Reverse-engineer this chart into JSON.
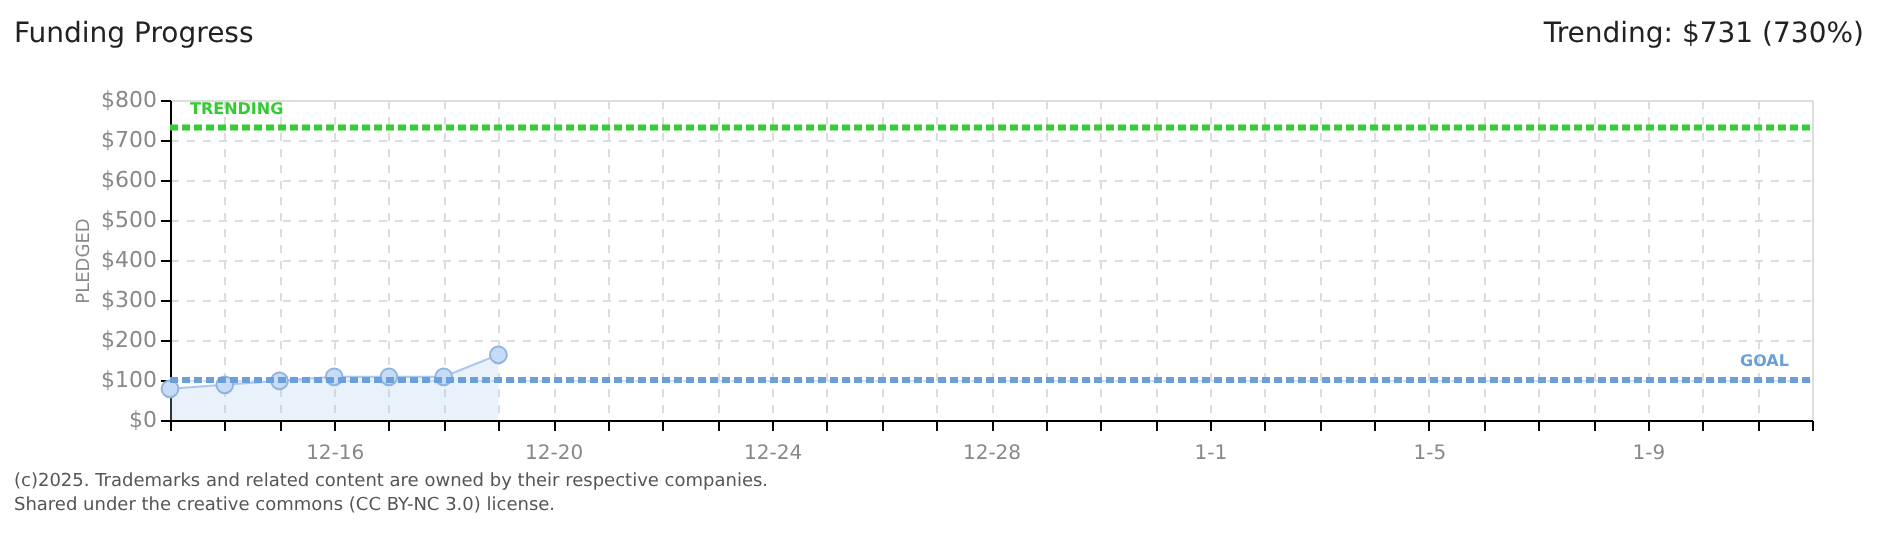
{
  "chart_data": {
    "type": "area",
    "title": "Funding Progress",
    "ylabel": "PLEDGED",
    "annotations": [
      "Trending: $731 (730%)",
      "(c)2025. Trademarks and related content are owned by their respective companies.",
      "Shared under the creative commons (CC BY-NC 3.0) license."
    ],
    "x": [
      "2024-12-13",
      "2024-12-14",
      "2024-12-15",
      "2024-12-16",
      "2024-12-17",
      "2024-12-18",
      "2024-12-19"
    ],
    "series": [
      {
        "color": "#a9c8f0",
        "values": [
          78,
          88,
          98,
          108,
          108,
          108,
          163
        ]
      }
    ],
    "marker": "circle",
    "grid": true,
    "xlim": [
      "2024-12-13",
      "2025-01-12"
    ],
    "xticks": [
      {
        "value": "2024-12-13",
        "label": null
      },
      {
        "value": "2024-12-14",
        "label": null
      },
      {
        "value": "2024-12-15",
        "label": null
      },
      {
        "value": "2024-12-16",
        "label": "12-16"
      },
      {
        "value": "2024-12-17",
        "label": null
      },
      {
        "value": "2024-12-18",
        "label": null
      },
      {
        "value": "2024-12-19",
        "label": null
      },
      {
        "value": "2024-12-20",
        "label": "12-20"
      },
      {
        "value": "2024-12-21",
        "label": null
      },
      {
        "value": "2024-12-22",
        "label": null
      },
      {
        "value": "2024-12-23",
        "label": null
      },
      {
        "value": "2024-12-24",
        "label": "12-24"
      },
      {
        "value": "2024-12-25",
        "label": null
      },
      {
        "value": "2024-12-26",
        "label": null
      },
      {
        "value": "2024-12-27",
        "label": null
      },
      {
        "value": "2024-12-28",
        "label": "12-28"
      },
      {
        "value": "2024-12-29",
        "label": null
      },
      {
        "value": "2024-12-30",
        "label": null
      },
      {
        "value": "2024-12-31",
        "label": null
      },
      {
        "value": "2025-01-01",
        "label": "1-1"
      },
      {
        "value": "2025-01-02",
        "label": null
      },
      {
        "value": "2025-01-03",
        "label": null
      },
      {
        "value": "2025-01-04",
        "label": null
      },
      {
        "value": "2025-01-05",
        "label": "1-5"
      },
      {
        "value": "2025-01-06",
        "label": null
      },
      {
        "value": "2025-01-07",
        "label": null
      },
      {
        "value": "2025-01-08",
        "label": null
      },
      {
        "value": "2025-01-09",
        "label": "1-9"
      },
      {
        "value": "2025-01-10",
        "label": null
      },
      {
        "value": "2025-01-11",
        "label": null
      },
      {
        "value": "2025-01-12",
        "label": null
      }
    ],
    "ylim": [
      0,
      800
    ],
    "yticks": [
      {
        "value": 0,
        "label": "$0"
      },
      {
        "value": 100,
        "label": "$100"
      },
      {
        "value": 200,
        "label": "$200"
      },
      {
        "value": 300,
        "label": "$300"
      },
      {
        "value": 400,
        "label": "$400"
      },
      {
        "value": 500,
        "label": "$500"
      },
      {
        "value": 600,
        "label": "$600"
      },
      {
        "value": 700,
        "label": "$700"
      },
      {
        "value": 800,
        "label": "$800"
      }
    ],
    "ref_lines": [
      {
        "axis": "y",
        "value": 731,
        "label": "TRENDING",
        "color": "#33cc33",
        "line_style": "dashed"
      },
      {
        "axis": "y",
        "value": 100,
        "label": "GOAL",
        "color": "#6a9fdc",
        "line_style": "dashed"
      }
    ]
  }
}
